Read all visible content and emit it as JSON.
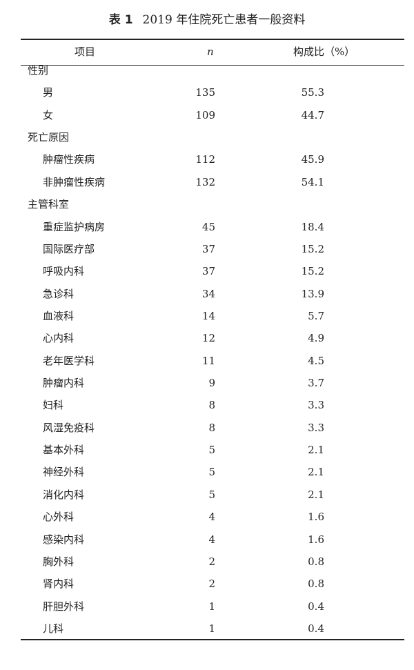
{
  "title": {
    "label": "表 1",
    "text": "2019 年住院死亡患者一般资料"
  },
  "header": {
    "item": "项目",
    "n": "n",
    "pct": "构成比（%）"
  },
  "rows": [
    {
      "label": "性别",
      "group": true
    },
    {
      "label": "男",
      "n": "135",
      "pct": "55.3"
    },
    {
      "label": "女",
      "n": "109",
      "pct": "44.7"
    },
    {
      "label": "死亡原因",
      "group": true
    },
    {
      "label": "肿瘤性疾病",
      "n": "112",
      "pct": "45.9"
    },
    {
      "label": "非肿瘤性疾病",
      "n": "132",
      "pct": "54.1"
    },
    {
      "label": "主管科室",
      "group": true
    },
    {
      "label": "重症监护病房",
      "n": "45",
      "pct": "18.4"
    },
    {
      "label": "国际医疗部",
      "n": "37",
      "pct": "15.2"
    },
    {
      "label": "呼吸内科",
      "n": "37",
      "pct": "15.2"
    },
    {
      "label": "急诊科",
      "n": "34",
      "pct": "13.9"
    },
    {
      "label": "血液科",
      "n": "14",
      "pct": "5.7"
    },
    {
      "label": "心内科",
      "n": "12",
      "pct": "4.9"
    },
    {
      "label": "老年医学科",
      "n": "11",
      "pct": "4.5"
    },
    {
      "label": "肿瘤内科",
      "n": "9",
      "pct": "3.7"
    },
    {
      "label": "妇科",
      "n": "8",
      "pct": "3.3"
    },
    {
      "label": "风湿免疫科",
      "n": "8",
      "pct": "3.3"
    },
    {
      "label": "基本外科",
      "n": "5",
      "pct": "2.1"
    },
    {
      "label": "神经外科",
      "n": "5",
      "pct": "2.1"
    },
    {
      "label": "消化内科",
      "n": "5",
      "pct": "2.1"
    },
    {
      "label": "心外科",
      "n": "4",
      "pct": "1.6"
    },
    {
      "label": "感染内科",
      "n": "4",
      "pct": "1.6"
    },
    {
      "label": "胸外科",
      "n": "2",
      "pct": "0.8"
    },
    {
      "label": "肾内科",
      "n": "2",
      "pct": "0.8"
    },
    {
      "label": "肝胆外科",
      "n": "1",
      "pct": "0.4"
    },
    {
      "label": "儿科",
      "n": "1",
      "pct": "0.4"
    }
  ]
}
